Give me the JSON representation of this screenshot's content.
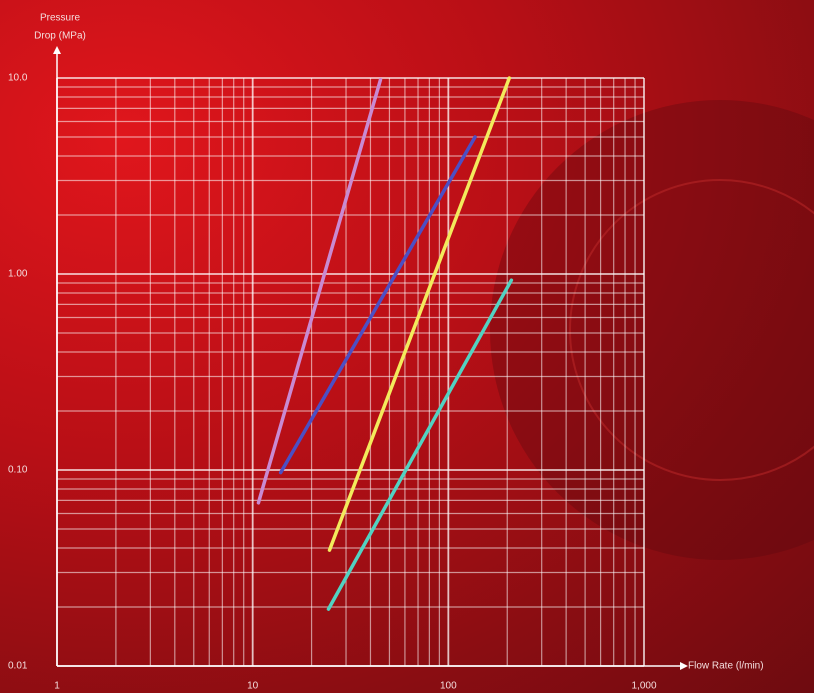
{
  "chart_data": {
    "type": "line",
    "ylabel": [
      "Pressure",
      "Drop (MPa)"
    ],
    "xlabel": "Flow Rate (l/min)",
    "log_x": true,
    "log_y": true,
    "grid": true,
    "xlim": [
      1,
      1000
    ],
    "xticks": [
      1,
      10,
      100,
      {
        "value": 1000,
        "label": "1,000"
      }
    ],
    "ylim": [
      0.01,
      10
    ],
    "yticks": [
      0.01,
      {
        "value": 0.1,
        "label": "0.10"
      },
      {
        "value": 1,
        "label": "1.00"
      },
      {
        "value": 10,
        "label": "10.0"
      }
    ],
    "series": [
      {
        "color": "#c98ad2",
        "x": [
          10.7,
          45
        ],
        "values": [
          0.068,
          9.8
        ]
      },
      {
        "color": "#4c4fc4",
        "x": [
          13.9,
          137
        ],
        "values": [
          0.097,
          5.0
        ]
      },
      {
        "color": "#f3ea5c",
        "x": [
          24.7,
          205
        ],
        "values": [
          0.039,
          10
        ]
      },
      {
        "color": "#52d2c2",
        "x": [
          24.4,
          210
        ],
        "values": [
          0.0195,
          0.93
        ]
      }
    ]
  }
}
